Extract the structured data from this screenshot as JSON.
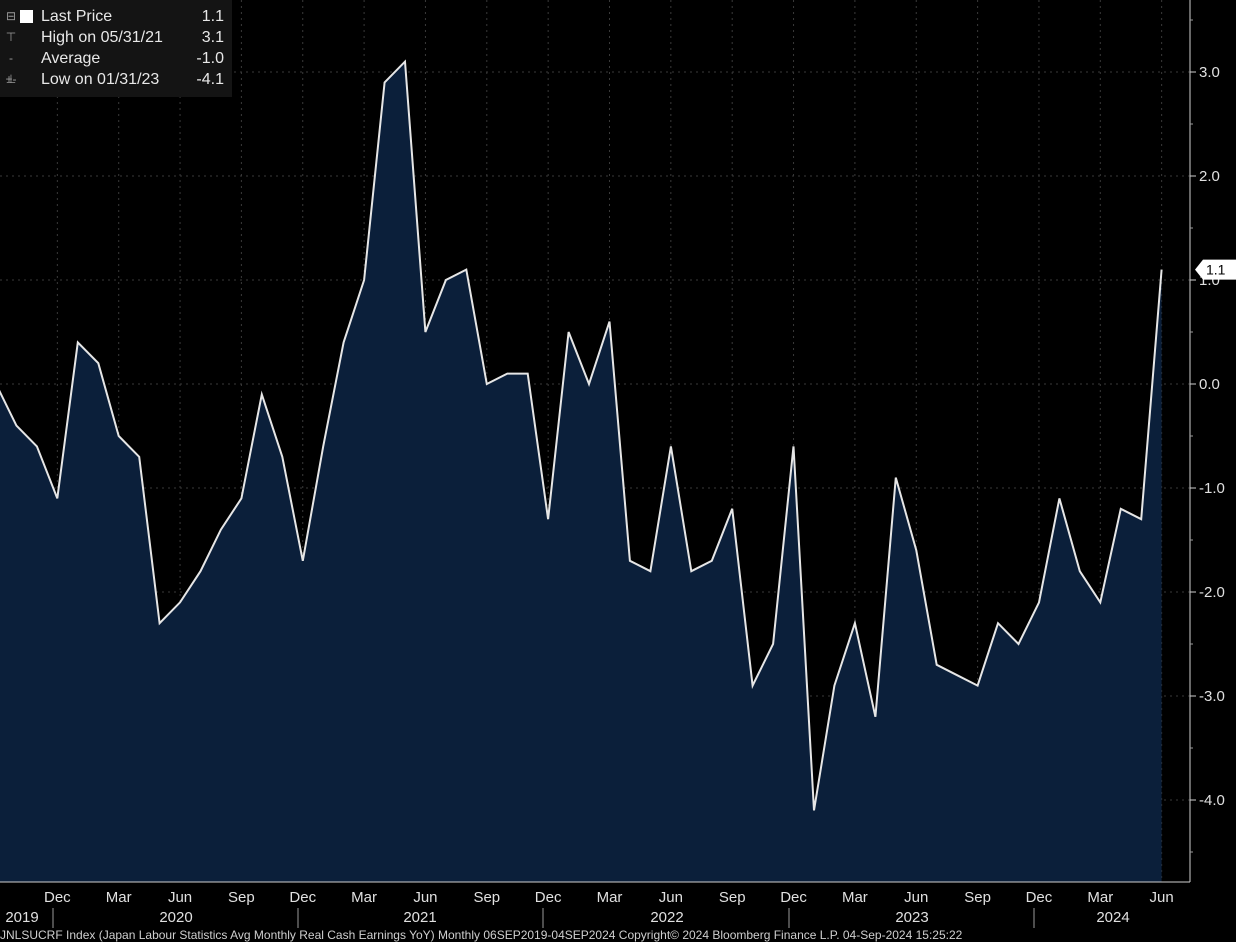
{
  "legend": {
    "rows": [
      {
        "glyph": "⊟",
        "label": "Last Price",
        "value": "1.1"
      },
      {
        "glyph": "⊤",
        "label": "High on 05/31/21",
        "value": "3.1"
      },
      {
        "glyph": "-+-",
        "label": "Average",
        "value": "-1.0"
      },
      {
        "glyph": "⊥",
        "label": "Low on 01/31/23",
        "value": "-4.1"
      }
    ]
  },
  "last_value_label": "1.1",
  "footer_text": "JNLSUCRF Index (Japan Labour Statistics Avg Monthly Real Cash Earnings YoY)  Monthly 06SEP2019-04SEP2024     Copyright© 2024 Bloomberg Finance L.P.     04-Sep-2024 15:25:22",
  "colors": {
    "background": "#000000",
    "area_fill": "#0b1f3a",
    "line": "#e6e6e6",
    "grid": "#3a3a3a"
  },
  "chart_data": {
    "type": "area",
    "y_ticks": [
      "3.0",
      "2.0",
      "1.0",
      "0.0",
      "-1.0",
      "-2.0",
      "-3.0",
      "-4.0"
    ],
    "ylim": [
      -4.75,
      3.75
    ],
    "x_month_ticks": [
      "Dec",
      "Mar",
      "Jun",
      "Sep",
      "Dec",
      "Mar",
      "Jun",
      "Sep",
      "Dec",
      "Mar",
      "Jun",
      "Sep",
      "Dec",
      "Mar",
      "Jun",
      "Sep",
      "Dec",
      "Mar",
      "Jun"
    ],
    "x_year_labels": [
      "2019",
      "2020",
      "2021",
      "2022",
      "2023",
      "2024"
    ],
    "x": [
      "2019-09",
      "2019-10",
      "2019-11",
      "2019-12",
      "2020-01",
      "2020-02",
      "2020-03",
      "2020-04",
      "2020-05",
      "2020-06",
      "2020-07",
      "2020-08",
      "2020-09",
      "2020-10",
      "2020-11",
      "2020-12",
      "2021-01",
      "2021-02",
      "2021-03",
      "2021-04",
      "2021-05",
      "2021-06",
      "2021-07",
      "2021-08",
      "2021-09",
      "2021-10",
      "2021-11",
      "2021-12",
      "2022-01",
      "2022-02",
      "2022-03",
      "2022-04",
      "2022-05",
      "2022-06",
      "2022-07",
      "2022-08",
      "2022-09",
      "2022-10",
      "2022-11",
      "2022-12",
      "2023-01",
      "2023-02",
      "2023-03",
      "2023-04",
      "2023-05",
      "2023-06",
      "2023-07",
      "2023-08",
      "2023-09",
      "2023-10",
      "2023-11",
      "2023-12",
      "2024-01",
      "2024-02",
      "2024-03",
      "2024-04",
      "2024-05",
      "2024-06"
    ],
    "series": [
      {
        "values": [
          0.0,
          -0.4,
          -0.6,
          -1.1,
          0.4,
          0.2,
          -0.5,
          -0.7,
          -2.3,
          -2.1,
          -1.8,
          -1.4,
          -1.1,
          -0.1,
          -0.7,
          -1.7,
          -0.6,
          0.4,
          1.0,
          2.9,
          3.1,
          0.5,
          1.0,
          1.1,
          0.0,
          0.1,
          0.1,
          -1.3,
          0.5,
          0.0,
          0.6,
          -1.7,
          -1.8,
          -0.6,
          -1.8,
          -1.7,
          -1.2,
          -2.9,
          -2.5,
          -0.6,
          -4.1,
          -2.9,
          -2.3,
          -3.2,
          -0.9,
          -1.6,
          -2.7,
          -2.8,
          -2.9,
          -2.3,
          -2.5,
          -2.1,
          -1.1,
          -1.8,
          -2.1,
          -1.2,
          -1.3,
          1.1
        ]
      }
    ],
    "last_value": 1.1,
    "grid": true
  }
}
